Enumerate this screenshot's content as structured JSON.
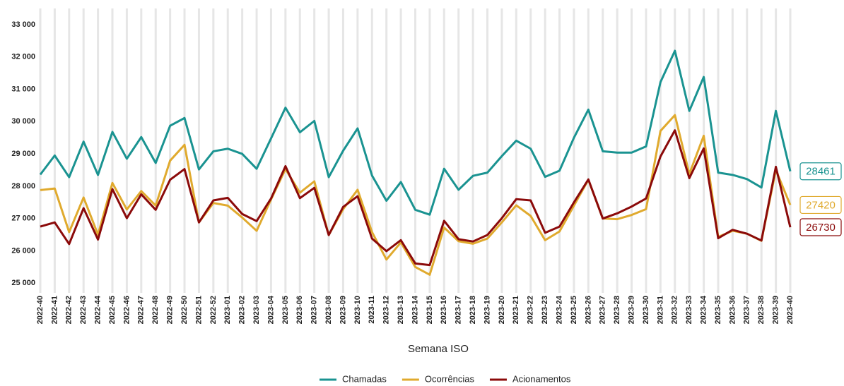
{
  "chart_data": {
    "type": "line",
    "x_label": "Semana ISO",
    "categories": [
      "2022-40",
      "2022-41",
      "2022-42",
      "2022-43",
      "2022-44",
      "2022-45",
      "2022-46",
      "2022-47",
      "2022-48",
      "2022-49",
      "2022-50",
      "2022-51",
      "2022-52",
      "2023-01",
      "2023-02",
      "2023-03",
      "2023-04",
      "2023-05",
      "2023-06",
      "2023-07",
      "2023-08",
      "2023-09",
      "2023-10",
      "2023-11",
      "2023-12",
      "2023-13",
      "2023-14",
      "2023-15",
      "2023-16",
      "2023-17",
      "2023-18",
      "2023-19",
      "2023-20",
      "2023-21",
      "2023-22",
      "2023-23",
      "2023-24",
      "2023-25",
      "2023-26",
      "2023-27",
      "2023-28",
      "2023-29",
      "2023-30",
      "2023-31",
      "2023-32",
      "2023-33",
      "2023-34",
      "2023-35",
      "2023-36",
      "2023-37",
      "2023-38",
      "2023-39",
      "2023-40"
    ],
    "series": [
      {
        "name": "Chamadas",
        "color": "#1a9391",
        "values": [
          28360,
          28950,
          28280,
          29380,
          28350,
          29680,
          28850,
          29520,
          28720,
          29870,
          30110,
          28520,
          29080,
          29160,
          29000,
          28540,
          29480,
          30430,
          29670,
          30020,
          28280,
          29100,
          29790,
          28330,
          27550,
          28130,
          27270,
          27120,
          28540,
          27890,
          28320,
          28420,
          28930,
          29410,
          29160,
          28290,
          28480,
          29500,
          30370,
          29080,
          29040,
          29040,
          29230,
          31220,
          32190,
          30330,
          31380,
          28420,
          28350,
          28220,
          27960,
          30330,
          28461
        ]
      },
      {
        "name": "Ocorrências",
        "color": "#e0aa2e",
        "values": [
          27880,
          27930,
          26580,
          27650,
          26500,
          28100,
          27280,
          27850,
          27400,
          28790,
          29280,
          26880,
          27480,
          27400,
          27030,
          26620,
          27590,
          28530,
          27800,
          28150,
          26490,
          27290,
          27890,
          26580,
          25730,
          26260,
          25500,
          25260,
          26720,
          26300,
          26220,
          26380,
          26880,
          27410,
          27080,
          26330,
          26600,
          27400,
          28200,
          27000,
          26980,
          27110,
          27290,
          29710,
          30200,
          28380,
          29560,
          26430,
          26620,
          26530,
          26310,
          28500,
          27420
        ]
      },
      {
        "name": "Acionamentos",
        "color": "#8b0a0a",
        "values": [
          26750,
          26880,
          26210,
          27320,
          26350,
          27910,
          27010,
          27750,
          27270,
          28200,
          28530,
          26880,
          27560,
          27640,
          27140,
          26920,
          27620,
          28620,
          27630,
          27950,
          26490,
          27360,
          27690,
          26380,
          25990,
          26330,
          25610,
          25560,
          26930,
          26360,
          26290,
          26490,
          27010,
          27600,
          27560,
          26560,
          26750,
          27500,
          28210,
          27000,
          27160,
          27370,
          27620,
          28920,
          29730,
          28250,
          29170,
          26390,
          26650,
          26530,
          26320,
          28600,
          26730
        ]
      }
    ],
    "ylim": [
      24700,
      33500
    ],
    "yticks": [
      {
        "value": 25000,
        "label": "25 000"
      },
      {
        "value": 26000,
        "label": "26 000"
      },
      {
        "value": 27000,
        "label": "27 000"
      },
      {
        "value": 28000,
        "label": "28 000"
      },
      {
        "value": 29000,
        "label": "29 000"
      },
      {
        "value": 30000,
        "label": "30 000"
      },
      {
        "value": 31000,
        "label": "31 000"
      },
      {
        "value": 32000,
        "label": "32 000"
      },
      {
        "value": 33000,
        "label": "33 000"
      }
    ],
    "grid": "x",
    "legend": "bottom"
  }
}
